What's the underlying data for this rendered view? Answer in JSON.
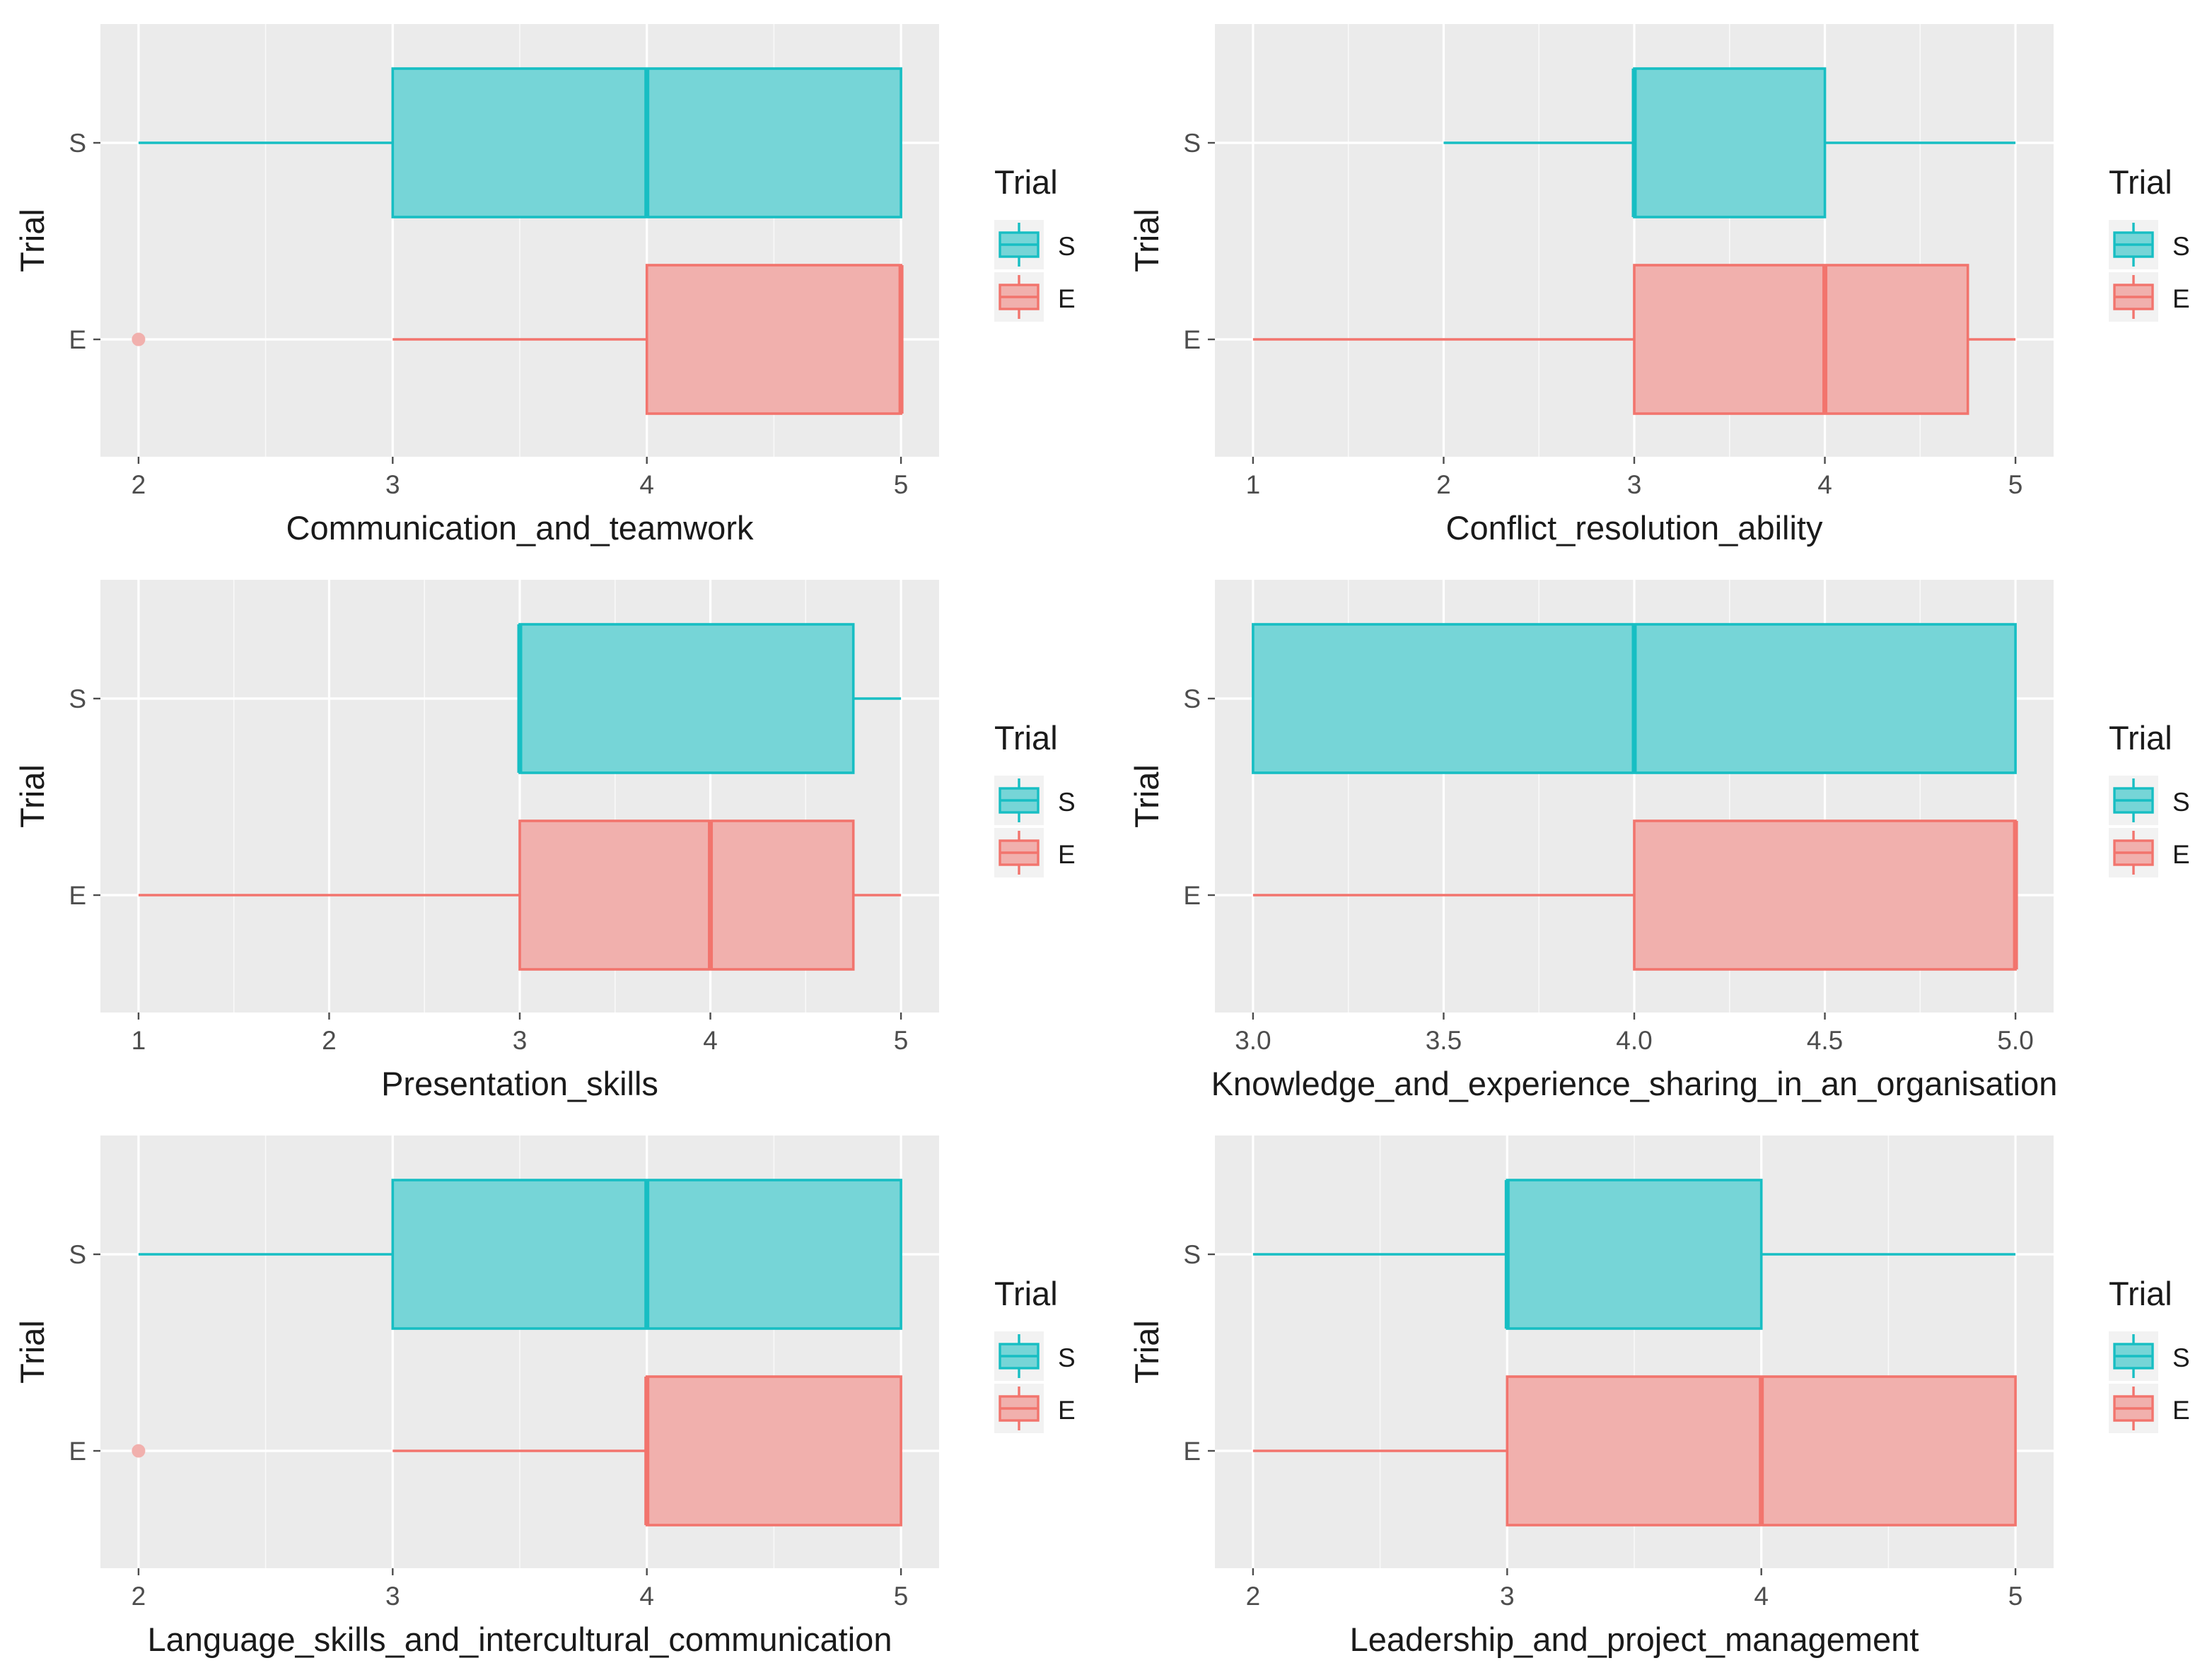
{
  "legend": {
    "title": "Trial",
    "entries": [
      "S",
      "E"
    ]
  },
  "colors": {
    "S_fill": "#76d5d7",
    "S_stroke": "#17bec3",
    "E_fill": "#f1b0ad",
    "E_stroke": "#f2746d",
    "panel": "#ebebeb",
    "grid": "#ffffff",
    "text": "#1a1a1a",
    "tick": "#4d4d4d"
  },
  "chart_data": [
    {
      "type": "boxplot",
      "xlabel": "Communication_and_teamwork",
      "ylabel": "Trial",
      "categories": [
        "S",
        "E"
      ],
      "xlim": [
        1.85,
        5.15
      ],
      "xticks": [
        2,
        3,
        4,
        5
      ],
      "xtick_labels": [
        "2",
        "3",
        "4",
        "5"
      ],
      "series": [
        {
          "name": "S",
          "min": 2,
          "q1": 3,
          "median": 4,
          "q3": 5,
          "max": 5,
          "outliers": []
        },
        {
          "name": "E",
          "min": 3,
          "q1": 4,
          "median": 5,
          "q3": 5,
          "max": 5,
          "outliers": [
            2
          ]
        }
      ]
    },
    {
      "type": "boxplot",
      "xlabel": "Conflict_resolution_ability",
      "ylabel": "Trial",
      "categories": [
        "S",
        "E"
      ],
      "xlim": [
        0.8,
        5.2
      ],
      "xticks": [
        1,
        2,
        3,
        4,
        5
      ],
      "xtick_labels": [
        "1",
        "2",
        "3",
        "4",
        "5"
      ],
      "series": [
        {
          "name": "S",
          "min": 2,
          "q1": 3,
          "median": 3,
          "q3": 4,
          "max": 5,
          "outliers": []
        },
        {
          "name": "E",
          "min": 1,
          "q1": 3,
          "median": 4,
          "q3": 4.75,
          "max": 5,
          "outliers": []
        }
      ]
    },
    {
      "type": "boxplot",
      "xlabel": "Presentation_skills",
      "ylabel": "Trial",
      "categories": [
        "S",
        "E"
      ],
      "xlim": [
        0.8,
        5.2
      ],
      "xticks": [
        1,
        2,
        3,
        4,
        5
      ],
      "xtick_labels": [
        "1",
        "2",
        "3",
        "4",
        "5"
      ],
      "series": [
        {
          "name": "S",
          "min": 3,
          "q1": 3,
          "median": 3,
          "q3": 4.75,
          "max": 5,
          "outliers": []
        },
        {
          "name": "E",
          "min": 1,
          "q1": 3,
          "median": 4,
          "q3": 4.75,
          "max": 5,
          "outliers": []
        }
      ]
    },
    {
      "type": "boxplot",
      "xlabel": "Knowledge_and_experience_sharing_in_an_organisation",
      "ylabel": "Trial",
      "categories": [
        "S",
        "E"
      ],
      "xlim": [
        2.9,
        5.1
      ],
      "xticks": [
        3.0,
        3.5,
        4.0,
        4.5,
        5.0
      ],
      "xtick_labels": [
        "3.0",
        "3.5",
        "4.0",
        "4.5",
        "5.0"
      ],
      "series": [
        {
          "name": "S",
          "min": 3,
          "q1": 3,
          "median": 4,
          "q3": 5,
          "max": 5,
          "outliers": []
        },
        {
          "name": "E",
          "min": 3,
          "q1": 4,
          "median": 5,
          "q3": 5,
          "max": 5,
          "outliers": []
        }
      ]
    },
    {
      "type": "boxplot",
      "xlabel": "Language_skills_and_intercultural_communication",
      "ylabel": "Trial",
      "categories": [
        "S",
        "E"
      ],
      "xlim": [
        1.85,
        5.15
      ],
      "xticks": [
        2,
        3,
        4,
        5
      ],
      "xtick_labels": [
        "2",
        "3",
        "4",
        "5"
      ],
      "series": [
        {
          "name": "S",
          "min": 2,
          "q1": 3,
          "median": 4,
          "q3": 5,
          "max": 5,
          "outliers": []
        },
        {
          "name": "E",
          "min": 3,
          "q1": 4,
          "median": 4,
          "q3": 5,
          "max": 5,
          "outliers": [
            2
          ]
        }
      ]
    },
    {
      "type": "boxplot",
      "xlabel": "Leadership_and_project_management",
      "ylabel": "Trial",
      "categories": [
        "S",
        "E"
      ],
      "xlim": [
        1.85,
        5.15
      ],
      "xticks": [
        2,
        3,
        4,
        5
      ],
      "xtick_labels": [
        "2",
        "3",
        "4",
        "5"
      ],
      "series": [
        {
          "name": "S",
          "min": 2,
          "q1": 3,
          "median": 3,
          "q3": 4,
          "max": 5,
          "outliers": []
        },
        {
          "name": "E",
          "min": 2,
          "q1": 3,
          "median": 4,
          "q3": 5,
          "max": 5,
          "outliers": []
        }
      ]
    }
  ]
}
